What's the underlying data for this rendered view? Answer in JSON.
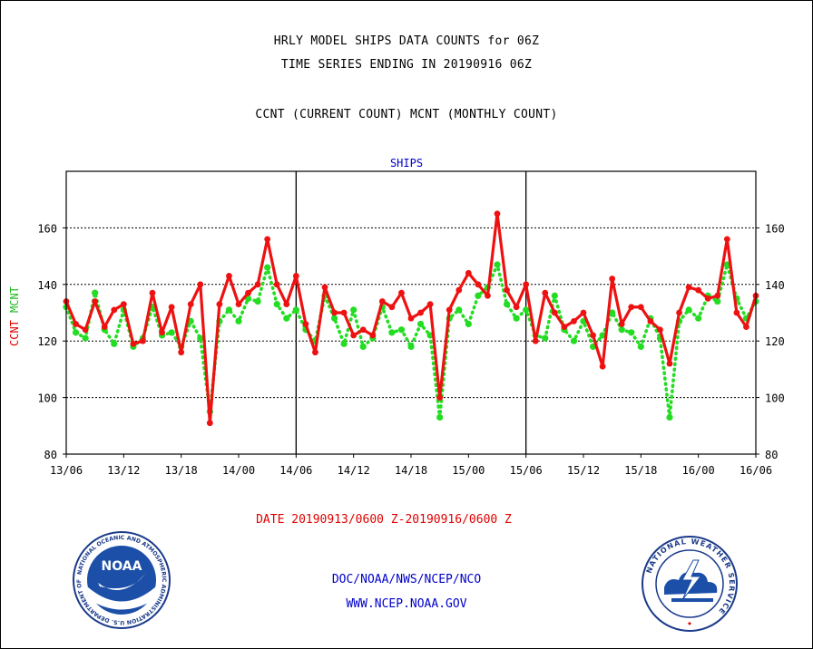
{
  "header": {
    "title_line1": "HRLY MODEL SHIPS DATA COUNTS for 06Z",
    "title_line2": "TIME SERIES ENDING IN 20190916 06Z",
    "subtitle": "CCNT (CURRENT COUNT) MCNT (MONTHLY COUNT)"
  },
  "chart_data": {
    "type": "line",
    "title": "SHIPS",
    "ylabel_ccnt": "CCNT",
    "ylabel_mcnt": "MCNT",
    "ylim": [
      80,
      180
    ],
    "yticks": [
      "80",
      "100",
      "120",
      "140",
      "160"
    ],
    "xlim": [
      0,
      72
    ],
    "xtick_positions": [
      0,
      6,
      12,
      18,
      24,
      30,
      36,
      42,
      48,
      54,
      60,
      66,
      72
    ],
    "xtick_labels": [
      "13/06",
      "13/12",
      "13/18",
      "14/00",
      "14/06",
      "14/12",
      "14/18",
      "15/00",
      "15/06",
      "15/12",
      "15/18",
      "16/00",
      "16/06"
    ],
    "day_dividers": [
      24,
      48
    ],
    "grid": true,
    "colors": {
      "ccnt": "#ee1111",
      "mcnt": "#22dd22",
      "frame": "#000000"
    },
    "series": [
      {
        "name": "CCNT",
        "style": "solid",
        "values": [
          134,
          126,
          124,
          134,
          125,
          131,
          133,
          119,
          120,
          137,
          123,
          132,
          116,
          133,
          140,
          91,
          133,
          143,
          133,
          137,
          140,
          156,
          140,
          133,
          143,
          126,
          116,
          139,
          130,
          130,
          122,
          124,
          122,
          134,
          132,
          137,
          128,
          130,
          133,
          100,
          131,
          138,
          144,
          140,
          136,
          165,
          138,
          132,
          140,
          120,
          137,
          130,
          125,
          127,
          130,
          122,
          111,
          142,
          126,
          132,
          132,
          127,
          124,
          112,
          130,
          139,
          138,
          135,
          136,
          156,
          130,
          125,
          136
        ]
      },
      {
        "name": "MCNT",
        "style": "dotted",
        "values": [
          132,
          123,
          121,
          137,
          124,
          119,
          131,
          118,
          121,
          132,
          122,
          123,
          118,
          127,
          121,
          95,
          127,
          131,
          127,
          135,
          134,
          146,
          133,
          128,
          131,
          124,
          120,
          136,
          128,
          119,
          131,
          118,
          121,
          132,
          123,
          124,
          118,
          126,
          122,
          93,
          128,
          131,
          126,
          136,
          139,
          147,
          133,
          128,
          131,
          122,
          121,
          136,
          124,
          120,
          127,
          118,
          122,
          130,
          124,
          123,
          118,
          128,
          121,
          93,
          127,
          131,
          128,
          136,
          134,
          147,
          135,
          128,
          134
        ]
      }
    ]
  },
  "footer": {
    "date_range": "DATE 20190913/0600 Z-20190916/0600 Z",
    "org_line": "DOC/NOAA/NWS/NCEP/NCO",
    "url_line": "WWW.NCEP.NOAA.GOV"
  },
  "logos": {
    "noaa_wordmark": "NOAA",
    "noaa_ring_text": "NATIONAL OCEANIC AND ATMOSPHERIC ADMINISTRATION U.S. DEPARTMENT OF COMMERCE",
    "nws_ring_text": "NATIONAL WEATHER SERVICE"
  }
}
